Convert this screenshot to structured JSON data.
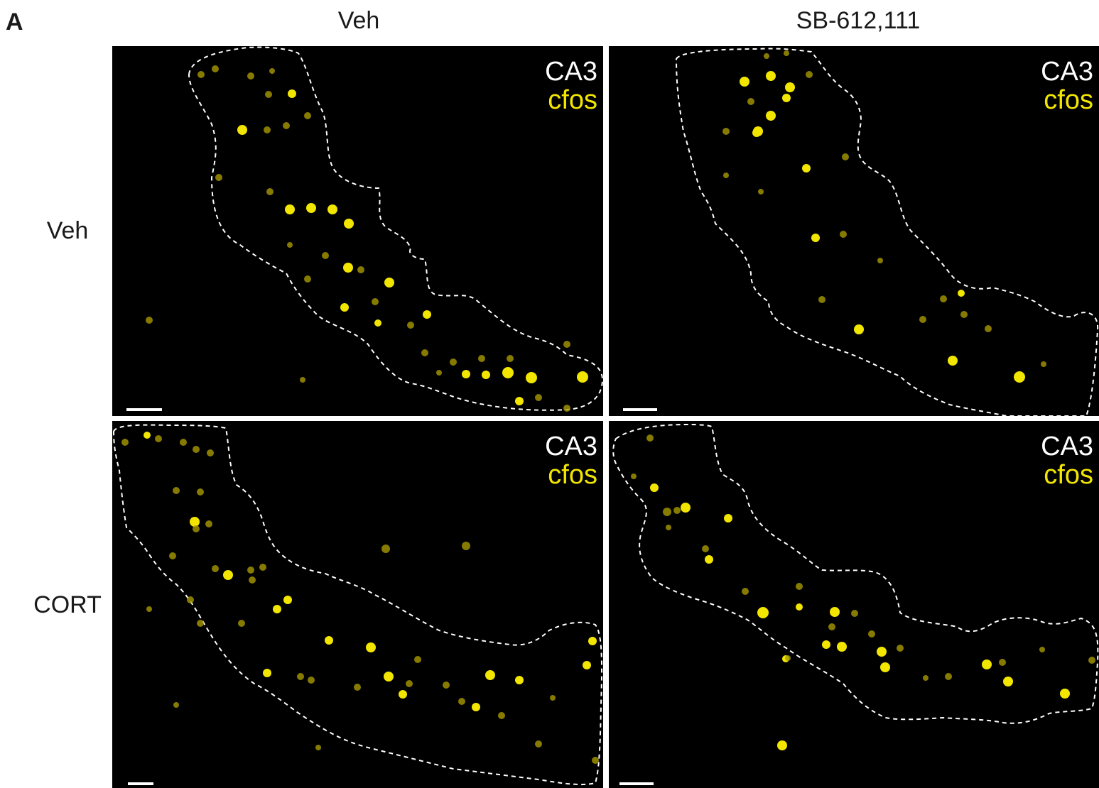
{
  "figure": {
    "panel_letter": "A",
    "columns": [
      "Veh",
      "SB-612,111"
    ],
    "rows": [
      "Veh",
      "CORT"
    ],
    "legend": {
      "region": "CA3",
      "marker": "cfos"
    },
    "colors": {
      "background": "#000000",
      "cfos": "#f2e600",
      "outline": "#ffffff"
    }
  }
}
